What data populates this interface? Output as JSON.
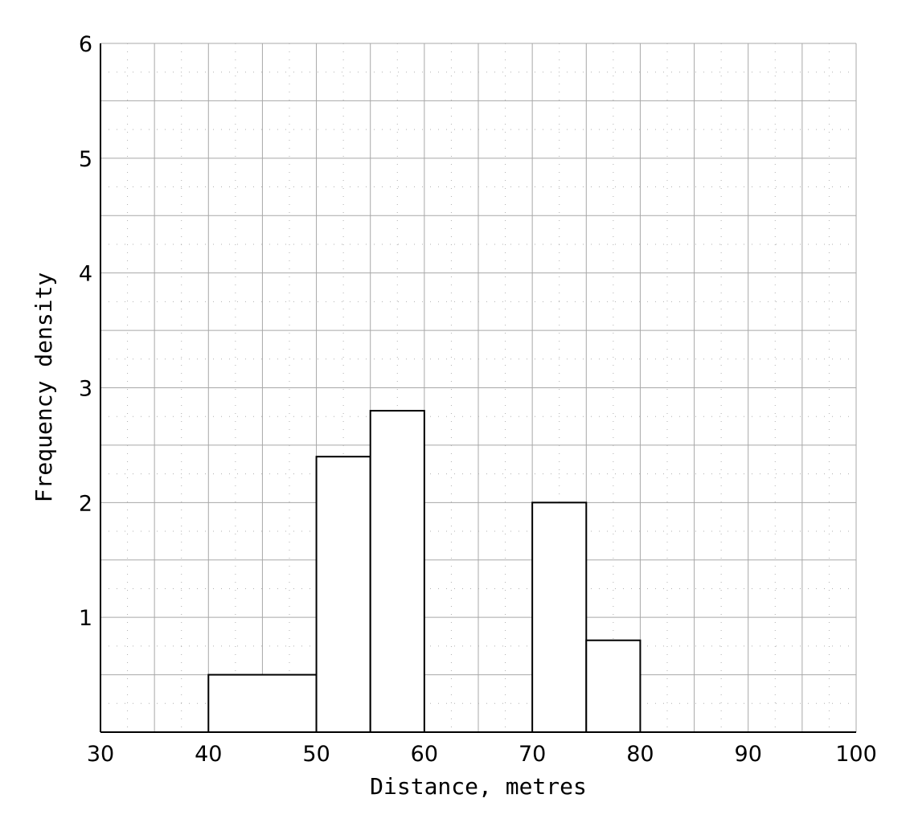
{
  "chart_data": {
    "type": "bar",
    "subtype": "histogram",
    "title": "",
    "xlabel": "Distance, metres",
    "ylabel": "Frequency density",
    "xlim": [
      30,
      100
    ],
    "ylim": [
      0,
      6
    ],
    "x_ticks": [
      30,
      40,
      50,
      60,
      70,
      80,
      90,
      100
    ],
    "x_tick_labels": [
      "30",
      "40",
      "50",
      "60",
      "70",
      "80",
      "90",
      "100"
    ],
    "y_ticks": [
      1,
      2,
      3,
      4,
      5,
      6
    ],
    "y_tick_labels": [
      "1",
      "2",
      "3",
      "4",
      "5",
      "6"
    ],
    "grid": true,
    "bins": [
      {
        "x_start": 40,
        "x_end": 50,
        "value": 0.5
      },
      {
        "x_start": 50,
        "x_end": 55,
        "value": 2.4
      },
      {
        "x_start": 55,
        "x_end": 60,
        "value": 2.8
      },
      {
        "x_start": 70,
        "x_end": 75,
        "value": 2.0
      },
      {
        "x_start": 75,
        "x_end": 80,
        "value": 0.8
      }
    ]
  }
}
